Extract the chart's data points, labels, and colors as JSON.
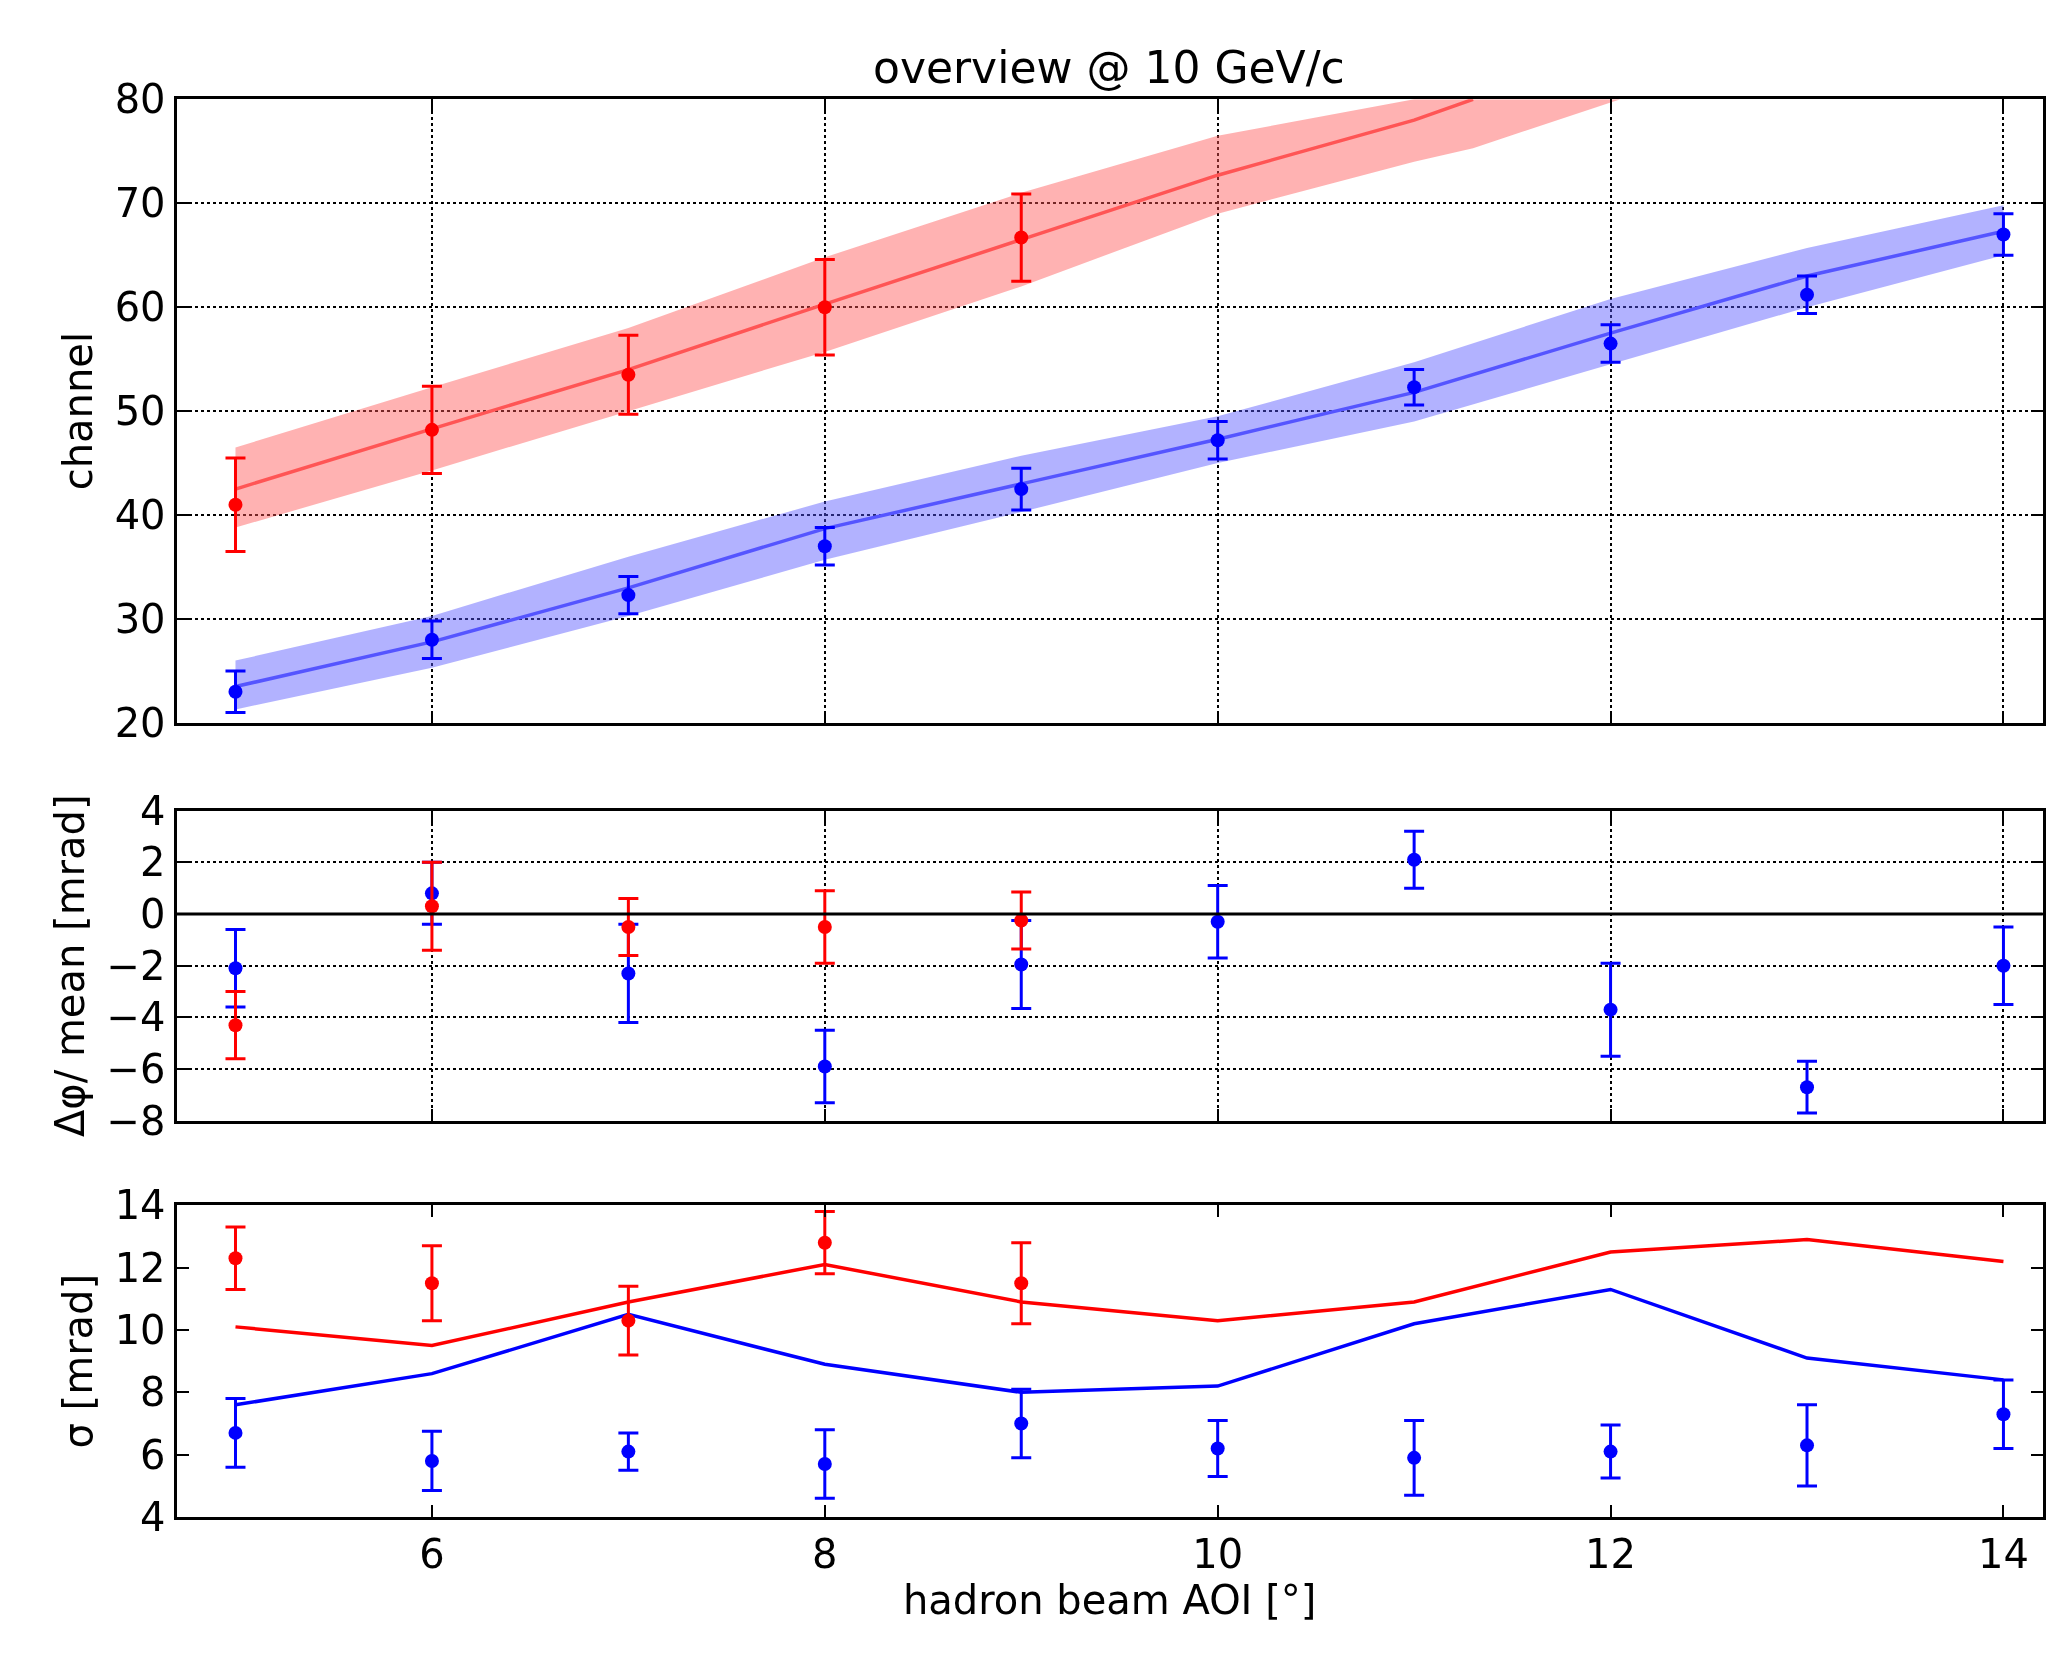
{
  "chart_data": [
    {
      "type": "scatter",
      "title": "overview @ 10 GeV/c",
      "ylabel": "channel",
      "x": [
        5,
        6,
        7,
        8,
        9,
        10,
        11,
        12,
        13,
        14
      ],
      "xlim": [
        4.7,
        14.2
      ],
      "xticks": [
        6,
        8,
        10,
        12,
        14
      ],
      "ylim": [
        20,
        80
      ],
      "yticks": [
        20,
        30,
        40,
        50,
        60,
        70,
        80
      ],
      "grid": true,
      "tick_labels": "y",
      "series": [
        {
          "type": "line",
          "marker": "none",
          "color": "#5555ff",
          "x": [
            5,
            6,
            7,
            8,
            9,
            10,
            11,
            12,
            13,
            14
          ],
          "values": [
            23.5,
            27.8,
            33,
            38.7,
            43,
            47.3,
            51.8,
            57.5,
            63,
            67.3
          ],
          "lower": [
            21.3,
            25.3,
            30.3,
            35.7,
            40.3,
            45,
            49,
            54.5,
            60,
            65
          ],
          "upper": [
            26,
            30.3,
            36,
            41.3,
            45.7,
            49.5,
            54.7,
            60.8,
            65.7,
            69.8
          ]
        },
        {
          "type": "line",
          "marker": "none",
          "color": "#ff5555",
          "x": [
            5,
            6,
            7,
            8,
            9,
            10,
            11,
            11.3,
            12.05
          ],
          "values": [
            42.5,
            48.3,
            54,
            60.3,
            66.5,
            72.7,
            78,
            80,
            null
          ],
          "lower": [
            38.8,
            44.3,
            50,
            55.7,
            62,
            69,
            74,
            75.3,
            80
          ],
          "upper": [
            46.5,
            52.3,
            58,
            64.8,
            71,
            76.5,
            80,
            80,
            80
          ]
        },
        {
          "type": "scatter",
          "marker": "circle",
          "color": "#0000ff",
          "values": [
            23,
            28,
            32.3,
            37,
            42.5,
            47.2,
            52.3,
            56.5,
            61.2,
            67
          ],
          "errors": [
            2,
            1.8,
            1.8,
            1.8,
            2,
            1.8,
            1.7,
            1.8,
            1.8,
            2
          ]
        },
        {
          "type": "scatter",
          "marker": "circle",
          "color": "#ff0000",
          "x": [
            5,
            6,
            7,
            8,
            9
          ],
          "values": [
            41,
            48.2,
            53.5,
            60,
            66.7
          ],
          "errors": [
            4.5,
            4.2,
            3.8,
            4.6,
            4.2
          ]
        }
      ]
    },
    {
      "type": "scatter",
      "ylabel": "Δφ/ mean [mrad]",
      "x": [
        5,
        6,
        7,
        8,
        9,
        10,
        11,
        12,
        13,
        14
      ],
      "xlim": [
        4.7,
        14.2
      ],
      "xticks": [
        6,
        8,
        10,
        12,
        14
      ],
      "ylim": [
        -8,
        4
      ],
      "yticks": [
        {
          "value": -8,
          "label": "−8"
        },
        {
          "value": -6,
          "label": "−6"
        },
        {
          "value": -4,
          "label": "−4"
        },
        {
          "value": -2,
          "label": "−2"
        },
        0,
        2,
        4
      ],
      "grid": true,
      "tick_labels": "y",
      "ref_lines": [
        {
          "axis": "y",
          "value": 0,
          "color": "#000000"
        }
      ],
      "series": [
        {
          "marker": "circle",
          "color": "#0000ff",
          "values": [
            -2.1,
            0.8,
            -2.3,
            -5.9,
            -1.95,
            -0.3,
            2.1,
            -3.7,
            -6.7,
            -2
          ],
          "errors": [
            1.5,
            1.2,
            1.9,
            1.4,
            1.7,
            1.4,
            1.1,
            1.8,
            1,
            1.5
          ]
        },
        {
          "marker": "circle",
          "color": "#ff0000",
          "x": [
            5,
            6,
            7,
            8,
            9
          ],
          "values": [
            -4.3,
            0.3,
            -0.5,
            -0.5,
            -0.25
          ],
          "errors": [
            1.3,
            1.7,
            1.1,
            1.4,
            1.1
          ]
        }
      ]
    },
    {
      "type": "scatter",
      "ylabel": "σ [mrad]",
      "xlabel": "hadron beam AOI [°]",
      "x": [
        5,
        6,
        7,
        8,
        9,
        10,
        11,
        12,
        13,
        14
      ],
      "xlim": [
        4.7,
        14.2
      ],
      "xticks": [
        6,
        8,
        10,
        12,
        14
      ],
      "ylim": [
        4,
        14
      ],
      "yticks": [
        4,
        6,
        8,
        10,
        12,
        14
      ],
      "series": [
        {
          "type": "line",
          "marker": "none",
          "color": "#0000ff",
          "values": [
            7.6,
            8.6,
            10.5,
            8.9,
            8,
            8.2,
            10.2,
            11.3,
            9.1,
            8.4
          ]
        },
        {
          "type": "line",
          "marker": "none",
          "color": "#ff0000",
          "values": [
            10.1,
            9.5,
            10.9,
            12.1,
            10.9,
            10.3,
            10.9,
            12.5,
            12.9,
            12.2
          ]
        },
        {
          "marker": "circle",
          "color": "#0000ff",
          "values": [
            6.7,
            5.8,
            6.1,
            5.7,
            7,
            6.2,
            5.9,
            6.1,
            6.3,
            7.3
          ],
          "errors": [
            1.1,
            0.95,
            0.6,
            1.1,
            1.1,
            0.9,
            1.2,
            0.85,
            1.3,
            1.1
          ]
        },
        {
          "marker": "circle",
          "color": "#ff0000",
          "x": [
            5,
            6,
            7,
            8,
            9
          ],
          "values": [
            12.3,
            11.5,
            10.3,
            12.8,
            11.5
          ],
          "errors": [
            1,
            1.2,
            1.1,
            1,
            1.3
          ]
        }
      ]
    }
  ]
}
